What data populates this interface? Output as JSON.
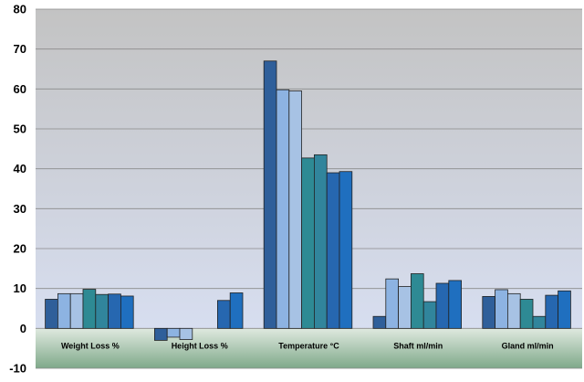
{
  "chart_data": {
    "type": "bar",
    "categories": [
      "Weight Loss %",
      "Height Loss %",
      "Temperature °C",
      "Shaft ml/min",
      "Gland ml/min"
    ],
    "series": [
      {
        "values": [
          7.3,
          -3.0,
          67.0,
          3.0,
          8.0
        ],
        "color": "#2f5f9a"
      },
      {
        "values": [
          8.7,
          -2.2,
          59.8,
          12.4,
          9.7
        ],
        "color": "#8db3e2"
      },
      {
        "values": [
          8.7,
          -2.8,
          59.5,
          10.5,
          8.7
        ],
        "color": "#a7c2e4"
      },
      {
        "values": [
          9.8,
          null,
          42.7,
          13.7,
          7.3
        ],
        "color": "#2e8a94"
      },
      {
        "values": [
          8.5,
          null,
          43.5,
          6.7,
          3.0
        ],
        "color": "#31859c"
      },
      {
        "values": [
          8.6,
          7.0,
          39.0,
          11.3,
          8.3
        ],
        "color": "#2667b0"
      },
      {
        "values": [
          8.1,
          8.9,
          39.3,
          12.0,
          9.4
        ],
        "color": "#1f6fbf"
      }
    ],
    "y_ticks": [
      "-10",
      "0",
      "10",
      "20",
      "30",
      "40",
      "50",
      "60",
      "70",
      "80"
    ],
    "ylim": [
      -10,
      80
    ],
    "grid": true,
    "legend": "none",
    "title": "",
    "xlabel": "",
    "ylabel": ""
  },
  "colors": {
    "plot_top": "#c3c3c3",
    "plot_mid": "#d7def0",
    "plot_below_zero_top": "#dfe9df",
    "plot_below_zero_bottom": "#7fa98a",
    "gridline": "#8a8a8a",
    "bar_stroke": "#222222"
  }
}
